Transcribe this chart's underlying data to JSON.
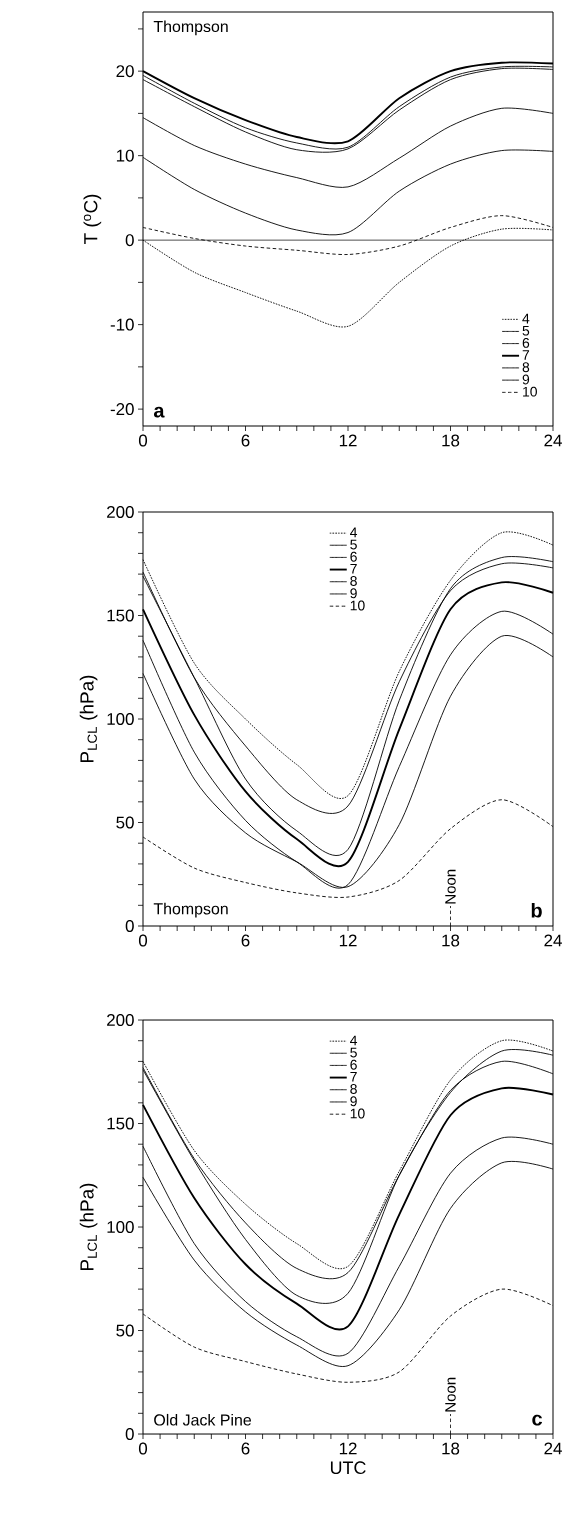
{
  "chart_data": [
    {
      "type": "line",
      "ylabel": "T ($^{o}$C)",
      "x": [
        0,
        3,
        6,
        9,
        12,
        15,
        18,
        21,
        24
      ],
      "xlim": [
        0,
        24
      ],
      "ylim": [
        -22,
        27
      ],
      "xticks": [
        0,
        {
          "value": 1,
          "label": null
        },
        {
          "value": 2,
          "label": null
        },
        {
          "value": 3,
          "label": null
        },
        {
          "value": 4,
          "label": null
        },
        {
          "value": 5,
          "label": null
        },
        6,
        {
          "value": 7,
          "label": null
        },
        {
          "value": 8,
          "label": null
        },
        {
          "value": 9,
          "label": null
        },
        {
          "value": 10,
          "label": null
        },
        {
          "value": 11,
          "label": null
        },
        12,
        {
          "value": 13,
          "label": null
        },
        {
          "value": 14,
          "label": null
        },
        {
          "value": 15,
          "label": null
        },
        {
          "value": 16,
          "label": null
        },
        {
          "value": 17,
          "label": null
        },
        18,
        {
          "value": 19,
          "label": null
        },
        {
          "value": 20,
          "label": null
        },
        {
          "value": 21,
          "label": null
        },
        {
          "value": 22,
          "label": null
        },
        {
          "value": 23,
          "label": null
        },
        24
      ],
      "yticks": [
        -20,
        {
          "value": -15,
          "label": null
        },
        -10,
        {
          "value": -5,
          "label": null
        },
        0,
        {
          "value": 5,
          "label": null
        },
        10,
        {
          "value": 15,
          "label": null
        },
        20,
        {
          "value": 25,
          "label": null
        }
      ],
      "legend": "bottom right",
      "grid": false,
      "ref_lines": [
        {
          "axis": "y",
          "value": 0,
          "color": "#000000",
          "line_style": "solid"
        }
      ],
      "annotations": [
        "Thompson",
        "a"
      ],
      "series": [
        {
          "name": "4",
          "color": "#000000",
          "line_style": "dotted",
          "values": [
            0,
            -3.8,
            -6.2,
            -8.4,
            -10.2,
            -5,
            -0.7,
            1.3,
            1.2
          ]
        },
        {
          "name": "5",
          "color": "#000000",
          "line_style": "solid",
          "values": [
            9.8,
            6,
            3.2,
            1.2,
            0.9,
            5.8,
            9,
            10.6,
            10.5
          ]
        },
        {
          "name": "6",
          "color": "#000000",
          "line_style": "solid",
          "values": [
            19.5,
            16.2,
            13.3,
            11.5,
            11,
            15.8,
            19.3,
            20.5,
            20.5
          ]
        },
        {
          "name": "7",
          "color": "#000000",
          "line_style": "solid",
          "values": [
            20,
            16.8,
            14.2,
            12.2,
            11.7,
            16.8,
            20,
            21,
            20.9
          ]
        },
        {
          "name": "8",
          "color": "#000000",
          "line_style": "solid",
          "values": [
            19,
            15.8,
            12.8,
            10.7,
            10.8,
            15.4,
            19,
            20.3,
            20.2
          ]
        },
        {
          "name": "9",
          "color": "#000000",
          "line_style": "solid",
          "values": [
            14.5,
            11.2,
            9,
            7.4,
            6.3,
            9.7,
            13.5,
            15.6,
            15
          ]
        },
        {
          "name": "10",
          "color": "#000000",
          "line_style": "dashed",
          "values": [
            1.5,
            0.2,
            -0.7,
            -1.2,
            -1.7,
            -0.7,
            1.5,
            2.9,
            1.5
          ]
        }
      ]
    },
    {
      "type": "line",
      "ylabel": "P$_{LCL}$ (hPa)",
      "x": [
        0,
        3,
        6,
        9,
        12,
        15,
        18,
        21,
        24
      ],
      "xlim": [
        0,
        24
      ],
      "ylim": [
        0,
        200
      ],
      "xticks": [
        0,
        {
          "value": 1,
          "label": null
        },
        {
          "value": 2,
          "label": null
        },
        {
          "value": 3,
          "label": null
        },
        {
          "value": 4,
          "label": null
        },
        {
          "value": 5,
          "label": null
        },
        6,
        {
          "value": 7,
          "label": null
        },
        {
          "value": 8,
          "label": null
        },
        {
          "value": 9,
          "label": null
        },
        {
          "value": 10,
          "label": null
        },
        {
          "value": 11,
          "label": null
        },
        12,
        {
          "value": 13,
          "label": null
        },
        {
          "value": 14,
          "label": null
        },
        {
          "value": 15,
          "label": null
        },
        {
          "value": 16,
          "label": null
        },
        {
          "value": 17,
          "label": null
        },
        18,
        {
          "value": 19,
          "label": null
        },
        {
          "value": 20,
          "label": null
        },
        {
          "value": 21,
          "label": null
        },
        {
          "value": 22,
          "label": null
        },
        {
          "value": 23,
          "label": null
        },
        24
      ],
      "yticks": [
        0,
        {
          "value": 10,
          "label": null
        },
        {
          "value": 20,
          "label": null
        },
        {
          "value": 30,
          "label": null
        },
        {
          "value": 40,
          "label": null
        },
        50,
        {
          "value": 60,
          "label": null
        },
        {
          "value": 70,
          "label": null
        },
        {
          "value": 80,
          "label": null
        },
        {
          "value": 90,
          "label": null
        },
        100,
        {
          "value": 110,
          "label": null
        },
        {
          "value": 120,
          "label": null
        },
        {
          "value": 130,
          "label": null
        },
        {
          "value": 140,
          "label": null
        },
        150,
        {
          "value": 160,
          "label": null
        },
        {
          "value": 170,
          "label": null
        },
        {
          "value": 180,
          "label": null
        },
        {
          "value": 190,
          "label": null
        },
        200
      ],
      "legend": "top",
      "grid": false,
      "ref_lines": [
        {
          "axis": "x",
          "value": 18,
          "label": "Noon",
          "color": "#000000",
          "line_style": "dashed"
        }
      ],
      "annotations": [
        "Thompson",
        "b"
      ],
      "series": [
        {
          "name": "4",
          "color": "#000000",
          "line_style": "dotted",
          "values": [
            177,
            127,
            100,
            78,
            63,
            123,
            167,
            190,
            184
          ]
        },
        {
          "name": "5",
          "color": "#000000",
          "line_style": "solid",
          "values": [
            171,
            120,
            87,
            61,
            58,
            118,
            162,
            175,
            173
          ]
        },
        {
          "name": "6",
          "color": "#000000",
          "line_style": "solid",
          "values": [
            169,
            120,
            71,
            46,
            37,
            109,
            163,
            178,
            176
          ]
        },
        {
          "name": "7",
          "color": "#000000",
          "line_style": "solid",
          "values": [
            153,
            102,
            65,
            42,
            31,
            95,
            153,
            166,
            161
          ]
        },
        {
          "name": "8",
          "color": "#000000",
          "line_style": "solid",
          "values": [
            138,
            84,
            51,
            31,
            20,
            77,
            131,
            152,
            141
          ]
        },
        {
          "name": "9",
          "color": "#000000",
          "line_style": "solid",
          "values": [
            122,
            71,
            45,
            31,
            19,
            49,
            111,
            140,
            130
          ]
        },
        {
          "name": "10",
          "color": "#000000",
          "line_style": "dashed",
          "values": [
            43,
            28,
            21,
            16,
            14,
            22,
            47,
            61,
            48
          ]
        }
      ]
    },
    {
      "type": "line",
      "xlabel": "UTC",
      "ylabel": "P$_{LCL}$ (hPa)",
      "x": [
        0,
        3,
        6,
        9,
        12,
        15,
        18,
        21,
        24
      ],
      "xlim": [
        0,
        24
      ],
      "ylim": [
        0,
        200
      ],
      "xticks": [
        0,
        {
          "value": 1,
          "label": null
        },
        {
          "value": 2,
          "label": null
        },
        {
          "value": 3,
          "label": null
        },
        {
          "value": 4,
          "label": null
        },
        {
          "value": 5,
          "label": null
        },
        6,
        {
          "value": 7,
          "label": null
        },
        {
          "value": 8,
          "label": null
        },
        {
          "value": 9,
          "label": null
        },
        {
          "value": 10,
          "label": null
        },
        {
          "value": 11,
          "label": null
        },
        12,
        {
          "value": 13,
          "label": null
        },
        {
          "value": 14,
          "label": null
        },
        {
          "value": 15,
          "label": null
        },
        {
          "value": 16,
          "label": null
        },
        {
          "value": 17,
          "label": null
        },
        18,
        {
          "value": 19,
          "label": null
        },
        {
          "value": 20,
          "label": null
        },
        {
          "value": 21,
          "label": null
        },
        {
          "value": 22,
          "label": null
        },
        {
          "value": 23,
          "label": null
        },
        24
      ],
      "yticks": [
        0,
        {
          "value": 10,
          "label": null
        },
        {
          "value": 20,
          "label": null
        },
        {
          "value": 30,
          "label": null
        },
        {
          "value": 40,
          "label": null
        },
        50,
        {
          "value": 60,
          "label": null
        },
        {
          "value": 70,
          "label": null
        },
        {
          "value": 80,
          "label": null
        },
        {
          "value": 90,
          "label": null
        },
        100,
        {
          "value": 110,
          "label": null
        },
        {
          "value": 120,
          "label": null
        },
        {
          "value": 130,
          "label": null
        },
        {
          "value": 140,
          "label": null
        },
        150,
        {
          "value": 160,
          "label": null
        },
        {
          "value": 170,
          "label": null
        },
        {
          "value": 180,
          "label": null
        },
        {
          "value": 190,
          "label": null
        },
        200
      ],
      "legend": "top",
      "grid": false,
      "ref_lines": [
        {
          "axis": "x",
          "value": 18,
          "label": "Noon",
          "color": "#000000",
          "line_style": "dashed"
        }
      ],
      "annotations": [
        "Old Jack Pine",
        "c"
      ],
      "series": [
        {
          "name": "4",
          "color": "#000000",
          "line_style": "dotted",
          "values": [
            180,
            137,
            111,
            92,
            81,
            127,
            171,
            190,
            185
          ]
        },
        {
          "name": "5",
          "color": "#000000",
          "line_style": "solid",
          "values": [
            177,
            133,
            102,
            80,
            78,
            125,
            166,
            180,
            174
          ]
        },
        {
          "name": "6",
          "color": "#000000",
          "line_style": "solid",
          "values": [
            176,
            132,
            94,
            67,
            68,
            125,
            165,
            185,
            183
          ]
        },
        {
          "name": "7",
          "color": "#000000",
          "line_style": "solid",
          "values": [
            159,
            114,
            82,
            63,
            52,
            106,
            154,
            167,
            164
          ]
        },
        {
          "name": "8",
          "color": "#000000",
          "line_style": "solid",
          "values": [
            139,
            92,
            64,
            47,
            39,
            81,
            126,
            143,
            140
          ]
        },
        {
          "name": "9",
          "color": "#000000",
          "line_style": "solid",
          "values": [
            124,
            84,
            59,
            43,
            33,
            60,
            109,
            131,
            128
          ]
        },
        {
          "name": "10",
          "color": "#000000",
          "line_style": "dashed",
          "values": [
            58,
            42,
            35,
            29,
            25,
            30,
            57,
            70,
            62
          ]
        }
      ]
    }
  ]
}
